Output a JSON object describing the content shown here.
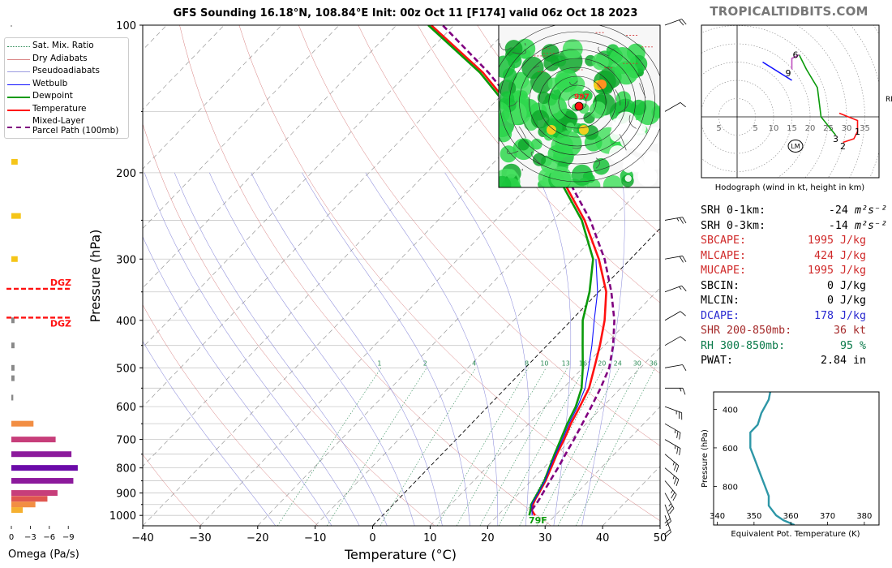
{
  "header": {
    "title": "GFS Sounding 16.18°N, 108.84°E Init: 00z Oct 11 [F174] valid 06z Oct 18 2023",
    "brand": "TROPICALTIDBITS.COM"
  },
  "legend": {
    "items": [
      {
        "label": "Sat. Mix. Ratio",
        "color": "#2e8b57",
        "style": "dotted"
      },
      {
        "label": "Dry Adiabats",
        "color": "#cd5c5c",
        "style": "thin"
      },
      {
        "label": "Pseudoadiabats",
        "color": "#7b7bd6",
        "style": "thin"
      },
      {
        "label": "Wetbulb",
        "color": "#1010ff",
        "style": "solid"
      },
      {
        "label": "Dewpoint",
        "color": "#0a9a0a",
        "style": "thick"
      },
      {
        "label": "Temperature",
        "color": "#ff1010",
        "style": "thick"
      },
      {
        "label": "Mixed-Layer",
        "label2": "Parcel Path (100mb)",
        "color": "#800080",
        "style": "dashed"
      }
    ]
  },
  "chart_data": [
    {
      "type": "line",
      "name": "skew-t",
      "xlabel": "Temperature (°C)",
      "ylabel": "Pressure (hPa)",
      "xlim": [
        -40,
        50
      ],
      "ylim": [
        1050,
        100
      ],
      "y_scale": "log",
      "x_ticks": [
        -40,
        -30,
        -20,
        -10,
        0,
        10,
        20,
        30,
        40,
        50
      ],
      "x_tick_labels": [
        "−40",
        "−30",
        "−20",
        "−10",
        "0",
        "10",
        "20",
        "30",
        "40",
        "50"
      ],
      "y_ticks": [
        100,
        200,
        300,
        400,
        500,
        600,
        700,
        800,
        900,
        1000
      ],
      "mixing_ratio_labels": [
        "1",
        "2",
        "4",
        "8",
        "10",
        "13",
        "16",
        "20",
        "24",
        "30",
        "36"
      ],
      "surface_label": "79F",
      "series": [
        {
          "name": "Temperature",
          "color": "#ff1010",
          "points": [
            [
              1000,
              26.5
            ],
            [
              975,
              25.0
            ],
            [
              950,
              24.3
            ],
            [
              925,
              23.8
            ],
            [
              900,
              23.4
            ],
            [
              850,
              22.5
            ],
            [
              800,
              21.3
            ],
            [
              750,
              20.0
            ],
            [
              700,
              18.8
            ],
            [
              650,
              17.3
            ],
            [
              600,
              16.0
            ],
            [
              550,
              14.5
            ],
            [
              500,
              12.0
            ],
            [
              450,
              9.2
            ],
            [
              400,
              5.8
            ],
            [
              350,
              1.3
            ],
            [
              300,
              -5.5
            ],
            [
              250,
              -14.5
            ],
            [
              200,
              -27.0
            ],
            [
              150,
              -45.0
            ],
            [
              125,
              -57.0
            ],
            [
              100,
              -74.0
            ]
          ]
        },
        {
          "name": "Dewpoint",
          "color": "#0a9a0a",
          "points": [
            [
              1000,
              25.5
            ],
            [
              975,
              24.8
            ],
            [
              950,
              24.0
            ],
            [
              925,
              23.6
            ],
            [
              900,
              23.2
            ],
            [
              850,
              22.3
            ],
            [
              800,
              21.0
            ],
            [
              750,
              19.6
            ],
            [
              700,
              18.2
            ],
            [
              650,
              16.7
            ],
            [
              600,
              15.3
            ],
            [
              550,
              13.2
            ],
            [
              500,
              10.0
            ],
            [
              450,
              6.2
            ],
            [
              400,
              2.0
            ],
            [
              350,
              -1.6
            ],
            [
              300,
              -6.5
            ],
            [
              250,
              -15.0
            ],
            [
              200,
              -27.5
            ],
            [
              150,
              -45.5
            ],
            [
              125,
              -57.5
            ],
            [
              100,
              -74.5
            ]
          ]
        },
        {
          "name": "Wetbulb",
          "color": "#1010ff",
          "points": [
            [
              1000,
              26.0
            ],
            [
              950,
              24.1
            ],
            [
              900,
              23.3
            ],
            [
              850,
              22.4
            ],
            [
              800,
              21.1
            ],
            [
              750,
              19.8
            ],
            [
              700,
              18.5
            ],
            [
              650,
              17.0
            ],
            [
              600,
              15.6
            ],
            [
              550,
              13.8
            ],
            [
              500,
              11.0
            ],
            [
              450,
              7.8
            ],
            [
              400,
              4.0
            ],
            [
              350,
              -0.2
            ],
            [
              300,
              -6.0
            ]
          ]
        },
        {
          "name": "Mixed-Layer Parcel Path (100mb)",
          "color": "#800080",
          "points": [
            [
              975,
              25.0
            ],
            [
              950,
              24.8
            ],
            [
              925,
              24.5
            ],
            [
              900,
              24.1
            ],
            [
              850,
              23.3
            ],
            [
              800,
              22.5
            ],
            [
              750,
              21.5
            ],
            [
              700,
              20.5
            ],
            [
              650,
              19.3
            ],
            [
              600,
              18.0
            ],
            [
              550,
              16.5
            ],
            [
              500,
              14.6
            ],
            [
              450,
              11.5
            ],
            [
              400,
              7.5
            ],
            [
              350,
              2.2
            ],
            [
              300,
              -4.5
            ],
            [
              250,
              -13.5
            ],
            [
              200,
              -26.0
            ],
            [
              150,
              -44.0
            ],
            [
              125,
              -56.0
            ],
            [
              100,
              -72.0
            ]
          ]
        }
      ],
      "annotations": {
        "dry_adiabat_thetas": [
          240,
          260,
          280,
          300,
          320,
          340,
          360,
          380,
          400,
          420,
          440,
          460,
          480,
          500,
          520
        ],
        "pseudoadiabat_thetaw": [
          -20,
          -10,
          -5,
          0,
          5,
          10,
          15,
          20,
          25,
          30,
          35
        ],
        "mixing_ratios": [
          1,
          2,
          4,
          8,
          10,
          13,
          16,
          20,
          24,
          30,
          36
        ]
      }
    },
    {
      "type": "bar",
      "name": "omega",
      "xlabel": "Omega (Pa/s)",
      "x_ticks": [
        0,
        -3,
        -6,
        -9
      ],
      "x_tick_labels": [
        "0",
        "−3",
        "−6",
        "−9"
      ],
      "dgz_label": "DGZ",
      "dgz_levels": [
        345,
        395
      ],
      "bars": [
        {
          "p": 190,
          "value": -1.0,
          "color": "#f5c518"
        },
        {
          "p": 245,
          "value": -1.5,
          "color": "#f5c518"
        },
        {
          "p": 300,
          "value": -1.0,
          "color": "#f5c518"
        },
        {
          "p": 400,
          "value": -0.5,
          "color": "#888888"
        },
        {
          "p": 450,
          "value": -0.5,
          "color": "#888888"
        },
        {
          "p": 500,
          "value": -0.5,
          "color": "#888888"
        },
        {
          "p": 525,
          "value": -0.5,
          "color": "#888888"
        },
        {
          "p": 575,
          "value": -0.3,
          "color": "#888888"
        },
        {
          "p": 650,
          "value": -3.5,
          "color": "#f28e43"
        },
        {
          "p": 700,
          "value": -7.0,
          "color": "#c73e7a"
        },
        {
          "p": 750,
          "value": -9.5,
          "color": "#8c1a9c"
        },
        {
          "p": 800,
          "value": -10.5,
          "color": "#6b0aa8"
        },
        {
          "p": 850,
          "value": -9.8,
          "color": "#8c1a9c"
        },
        {
          "p": 900,
          "value": -7.3,
          "color": "#c73e7a"
        },
        {
          "p": 925,
          "value": -5.7,
          "color": "#e0564f"
        },
        {
          "p": 950,
          "value": -3.8,
          "color": "#f28e43"
        },
        {
          "p": 975,
          "value": -1.8,
          "color": "#f5b030"
        }
      ]
    },
    {
      "type": "line",
      "name": "hodograph",
      "xlabel": "Hodograph (wind in kt, height in km)",
      "ring_labels": [
        "5",
        "5",
        "10",
        "15",
        "20",
        "25",
        "30",
        "35"
      ],
      "lm_label": "LM",
      "rm_label": "RM",
      "height_labels": [
        {
          "label": "1",
          "u": 33,
          "v": -4
        },
        {
          "label": "2",
          "u": 29,
          "v": -8
        },
        {
          "label": "3",
          "u": 27,
          "v": -6
        },
        {
          "label": "6",
          "u": 16,
          "v": 17
        },
        {
          "label": "9",
          "u": 14,
          "v": 12
        }
      ],
      "segments": [
        {
          "color": "#ff1010",
          "points": [
            [
              29,
              -7
            ],
            [
              32,
              -6
            ],
            [
              33,
              -4
            ],
            [
              33,
              -1
            ],
            [
              28,
              1
            ]
          ]
        },
        {
          "color": "#0a9a0a",
          "points": [
            [
              27,
              -5
            ],
            [
              23,
              0
            ],
            [
              22,
              8
            ],
            [
              19,
              13
            ],
            [
              17,
              17
            ]
          ]
        },
        {
          "color": "#c050c0",
          "points": [
            [
              17,
              17
            ],
            [
              15,
              16
            ],
            [
              15,
              13
            ]
          ]
        },
        {
          "color": "#1010ff",
          "points": [
            [
              15,
              10
            ],
            [
              7,
              15
            ]
          ]
        }
      ],
      "lm_point": [
        16,
        -8
      ]
    },
    {
      "type": "line",
      "name": "theta-e",
      "xlabel": "Equivalent Pot. Temperature (K)",
      "ylabel": "Pressure (hPa)",
      "xlim": [
        340,
        385
      ],
      "ylim": [
        1000,
        300
      ],
      "x_ticks": [
        340,
        350,
        360,
        370,
        380
      ],
      "y_ticks": [
        400,
        600,
        800
      ],
      "series": [
        {
          "name": "theta-e",
          "color": "#2e97a7",
          "points": [
            [
              300,
              354.5
            ],
            [
              350,
              354
            ],
            [
              420,
              352
            ],
            [
              480,
              351
            ],
            [
              520,
              349
            ],
            [
              560,
              349
            ],
            [
              600,
              349
            ],
            [
              650,
              350
            ],
            [
              700,
              351
            ],
            [
              750,
              352
            ],
            [
              800,
              353
            ],
            [
              850,
              354
            ],
            [
              900,
              354
            ],
            [
              950,
              356
            ],
            [
              975,
              358
            ],
            [
              1000,
              361
            ]
          ]
        }
      ]
    }
  ],
  "stats": {
    "rows": [
      {
        "label": "SRH 0-1km:",
        "value": "-24",
        "unit": "m²s⁻²",
        "color": "#000000"
      },
      {
        "label": "SRH 0-3km:",
        "value": "-14",
        "unit": "m²s⁻²",
        "color": "#000000"
      },
      {
        "label": "SBCAPE:",
        "value": "1995 J/kg",
        "color": "#d02a2a"
      },
      {
        "label": "MLCAPE:",
        "value": "424 J/kg",
        "color": "#d02a2a"
      },
      {
        "label": "MUCAPE:",
        "value": "1995 J/kg",
        "color": "#d02a2a"
      },
      {
        "label": "SBCIN:",
        "value": "0 J/kg",
        "color": "#000000"
      },
      {
        "label": "MLCIN:",
        "value": "0 J/kg",
        "color": "#000000"
      },
      {
        "label": "DCAPE:",
        "value": "178 J/kg",
        "color": "#2a2ad0"
      },
      {
        "label": "SHR 200-850mb:",
        "value": "36 kt",
        "color": "#a52a2a"
      },
      {
        "label": "RH 300-850mb:",
        "value": "95 %",
        "color": "#0a7a4a"
      },
      {
        "label": "PWAT:",
        "value": "2.84 in",
        "color": "#000000"
      }
    ]
  },
  "inset_map": {
    "label": "997"
  },
  "barbs": {
    "levels": [
      {
        "p": 100,
        "dir": 70,
        "spd": 20
      },
      {
        "p": 150,
        "dir": 60,
        "spd": 10
      },
      {
        "p": 250,
        "dir": 80,
        "spd": 25
      },
      {
        "p": 300,
        "dir": 80,
        "spd": 20
      },
      {
        "p": 350,
        "dir": 70,
        "spd": 15
      },
      {
        "p": 400,
        "dir": 60,
        "spd": 10
      },
      {
        "p": 450,
        "dir": 60,
        "spd": 10
      },
      {
        "p": 500,
        "dir": 80,
        "spd": 10
      },
      {
        "p": 550,
        "dir": 90,
        "spd": 15
      },
      {
        "p": 600,
        "dir": 110,
        "spd": 25
      },
      {
        "p": 650,
        "dir": 120,
        "spd": 25
      },
      {
        "p": 700,
        "dir": 120,
        "spd": 25
      },
      {
        "p": 750,
        "dir": 130,
        "spd": 25
      },
      {
        "p": 800,
        "dir": 130,
        "spd": 25
      },
      {
        "p": 850,
        "dir": 140,
        "spd": 25
      },
      {
        "p": 900,
        "dir": 150,
        "spd": 25
      },
      {
        "p": 950,
        "dir": 160,
        "spd": 20
      },
      {
        "p": 1000,
        "dir": 160,
        "spd": 20
      }
    ]
  }
}
